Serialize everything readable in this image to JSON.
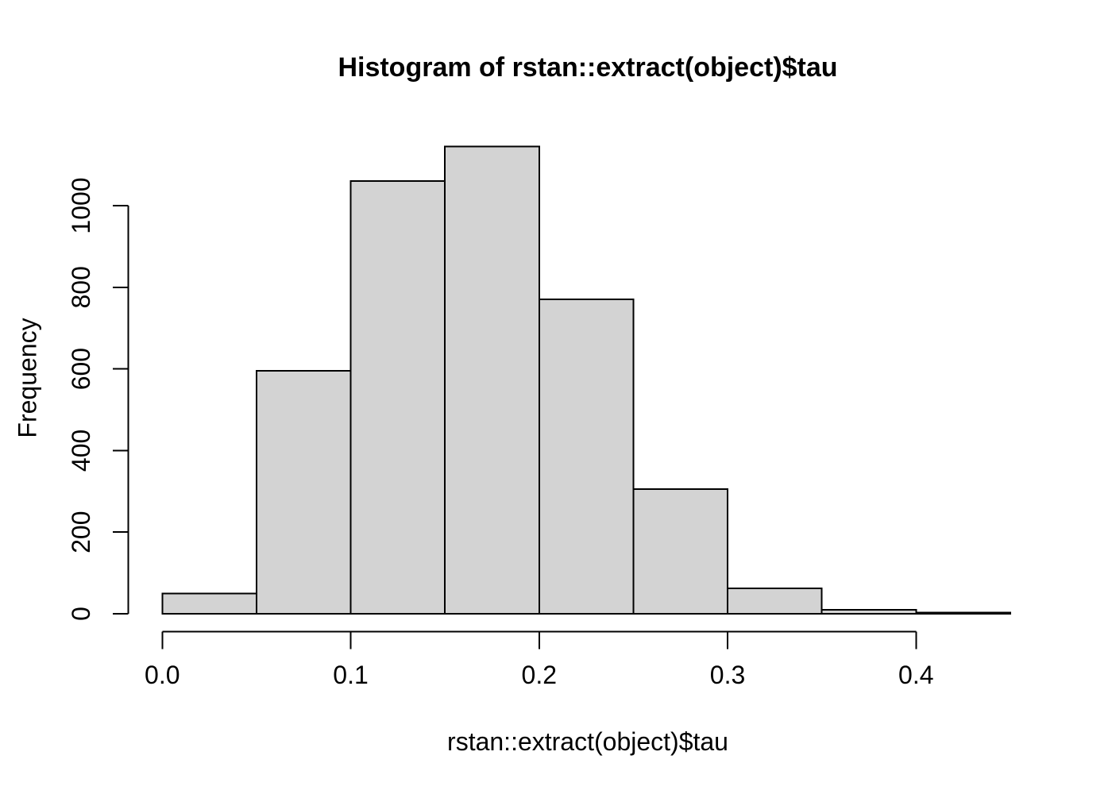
{
  "chart_data": {
    "type": "bar",
    "subtype": "histogram",
    "title": "Histogram of rstan::extract(object)$tau",
    "xlabel": "rstan::extract(object)$tau",
    "ylabel": "Frequency",
    "breaks": [
      0.0,
      0.05,
      0.1,
      0.15,
      0.2,
      0.25,
      0.3,
      0.35,
      0.4,
      0.45
    ],
    "counts": [
      50,
      595,
      1060,
      1145,
      770,
      305,
      62,
      10,
      3
    ],
    "x_tick_values": [
      0.0,
      0.1,
      0.2,
      0.3,
      0.4
    ],
    "x_tick_labels": [
      "0.0",
      "0.1",
      "0.2",
      "0.3",
      "0.4"
    ],
    "y_tick_values": [
      0,
      200,
      400,
      600,
      800,
      1000
    ],
    "y_tick_labels": [
      "0",
      "200",
      "400",
      "600",
      "800",
      "1000"
    ],
    "xlim": [
      0.0,
      0.45
    ],
    "ylim": [
      0,
      1145
    ],
    "grid": false,
    "legend_position": "none",
    "colors": {
      "bar_fill": "#d3d3d3",
      "bar_stroke": "#000000",
      "axis": "#000000",
      "text": "#000000",
      "background": "#ffffff"
    }
  }
}
